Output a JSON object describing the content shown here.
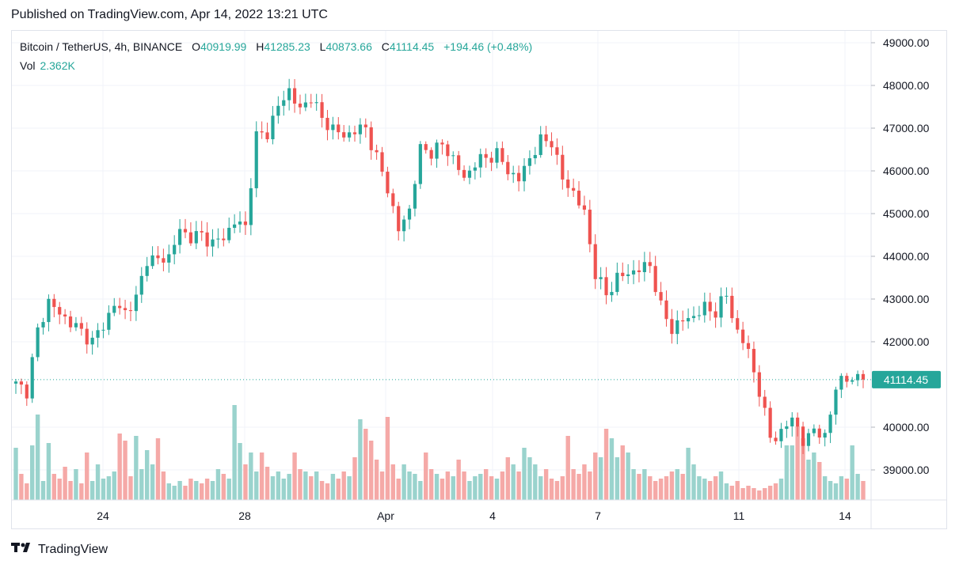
{
  "header": {
    "published": "Published on TradingView.com, Apr 14, 2022 13:21 UTC"
  },
  "legend": {
    "symbol": "Bitcoin / TetherUS, 4h, BINANCE",
    "open_label": "O",
    "open": "40919.99",
    "high_label": "H",
    "high": "41285.23",
    "low_label": "L",
    "low": "40873.66",
    "close_label": "C",
    "close": "41114.45",
    "change": "+194.46 (+0.48%)",
    "vol_label": "Vol",
    "vol_value": "2.362K"
  },
  "footer": {
    "brand": "TradingView",
    "logo_icon": "tradingview-logo-icon"
  },
  "colors": {
    "up": "#26a69a",
    "down": "#ef5350",
    "up_vol": "#9ad3cd",
    "down_vol": "#f5a9a7",
    "grid": "#f0f3fa",
    "text": "#131722"
  },
  "chart_data": {
    "type": "candlestick",
    "interval": "4h",
    "y_ticks": [
      "49000.00",
      "48000.00",
      "47000.00",
      "46000.00",
      "45000.00",
      "44000.00",
      "43000.00",
      "42000.00",
      "41000.00",
      "40000.00",
      "39000.00"
    ],
    "x_ticks": [
      "24",
      "28",
      "Apr",
      "4",
      "7",
      "11",
      "14"
    ],
    "last_price": "41114.45",
    "ylim": [
      38200,
      49300
    ],
    "close_path": [
      [
        0,
        41000
      ],
      [
        2,
        40850
      ],
      [
        4,
        42250
      ],
      [
        6,
        42950
      ],
      [
        8,
        42650
      ],
      [
        11,
        42350
      ],
      [
        14,
        42000
      ],
      [
        16,
        42400
      ],
      [
        18,
        42850
      ],
      [
        20,
        42700
      ],
      [
        22,
        43000
      ],
      [
        24,
        43950
      ],
      [
        26,
        43900
      ],
      [
        28,
        44000
      ],
      [
        30,
        44600
      ],
      [
        32,
        44450
      ],
      [
        34,
        44500
      ],
      [
        36,
        44300
      ],
      [
        38,
        44450
      ],
      [
        40,
        44800
      ],
      [
        42,
        44700
      ],
      [
        44,
        46800
      ],
      [
        46,
        46900
      ],
      [
        48,
        47500
      ],
      [
        50,
        47900
      ],
      [
        52,
        47400
      ],
      [
        54,
        47750
      ],
      [
        56,
        47200
      ],
      [
        58,
        47000
      ],
      [
        60,
        46800
      ],
      [
        62,
        46950
      ],
      [
        64,
        47000
      ],
      [
        66,
        46300
      ],
      [
        68,
        45600
      ],
      [
        70,
        44600
      ],
      [
        72,
        45100
      ],
      [
        74,
        46500
      ],
      [
        76,
        46450
      ],
      [
        78,
        46600
      ],
      [
        80,
        46300
      ],
      [
        82,
        45800
      ],
      [
        84,
        46200
      ],
      [
        86,
        46300
      ],
      [
        88,
        46400
      ],
      [
        90,
        46000
      ],
      [
        92,
        45800
      ],
      [
        94,
        46300
      ],
      [
        96,
        46700
      ],
      [
        98,
        46700
      ],
      [
        100,
        45800
      ],
      [
        102,
        45500
      ],
      [
        104,
        45000
      ],
      [
        106,
        43600
      ],
      [
        108,
        43100
      ],
      [
        110,
        43500
      ],
      [
        112,
        43600
      ],
      [
        114,
        43700
      ],
      [
        116,
        43800
      ],
      [
        118,
        42800
      ],
      [
        120,
        42300
      ],
      [
        122,
        42500
      ],
      [
        124,
        42600
      ],
      [
        126,
        42800
      ],
      [
        128,
        42700
      ],
      [
        130,
        43100
      ],
      [
        132,
        42200
      ],
      [
        134,
        41800
      ],
      [
        136,
        40800
      ],
      [
        138,
        39800
      ],
      [
        140,
        39800
      ],
      [
        142,
        40300
      ],
      [
        144,
        39600
      ],
      [
        146,
        40000
      ],
      [
        148,
        39700
      ],
      [
        150,
        41000
      ],
      [
        152,
        41100
      ],
      [
        154,
        41200
      ],
      [
        155,
        41114.45
      ]
    ],
    "volume_levels": [
      2.2,
      1.1,
      0.7,
      2.3,
      3.6,
      0.8,
      2.4,
      1.1,
      0.9,
      1.4,
      0.8,
      1.3,
      0.7,
      2.0,
      0.8,
      1.5,
      0.9,
      1.0,
      1.2,
      2.8,
      2.5,
      1.0,
      2.7,
      1.3,
      2.1,
      1.5,
      2.6,
      1.2,
      0.7,
      0.6,
      0.8,
      0.6,
      0.9,
      0.8,
      0.7,
      0.9,
      0.8,
      1.3,
      1.1,
      0.9,
      4.0,
      2.4,
      1.5,
      2.0,
      1.2,
      2.0,
      1.4,
      1.0,
      1.2,
      0.9,
      1.1,
      2.0,
      1.3,
      1.2,
      1.0,
      1.2,
      0.8,
      0.7,
      1.1,
      0.9,
      1.2,
      1.0,
      1.8,
      3.4,
      3.0,
      2.5,
      1.7,
      1.2,
      3.5,
      1.5,
      0.9,
      1.5,
      1.2,
      1.1,
      0.8,
      2.0,
      1.3,
      1.1,
      0.9,
      1.2,
      1.0,
      1.7,
      1.2,
      0.8,
      1.0,
      1.1,
      1.3,
      1.0,
      0.9,
      1.2,
      1.8,
      1.5,
      1.2,
      2.2,
      1.8,
      1.5,
      1.0,
      1.3,
      0.9,
      0.8,
      1.0,
      2.7,
      1.3,
      1.1,
      1.5,
      1.2,
      2.0,
      1.8,
      3.0,
      2.6,
      1.8,
      2.3,
      2.0,
      1.3,
      1.1,
      1.3,
      1.0,
      0.8,
      0.9,
      1.0,
      1.2,
      1.3,
      1.1,
      2.2,
      1.5,
      1.0,
      0.9,
      0.8,
      1.0,
      1.2,
      0.7,
      0.6,
      0.8,
      0.5,
      0.6,
      0.5,
      0.4,
      0.5,
      0.6,
      0.7,
      0.9,
      2.3,
      2.3,
      3.1,
      2.6,
      1.7,
      2.0,
      1.6,
      1.0,
      0.8,
      0.7,
      1.0,
      0.9,
      2.3,
      1.1,
      0.8,
      1.0,
      0.8,
      0.5
    ]
  }
}
